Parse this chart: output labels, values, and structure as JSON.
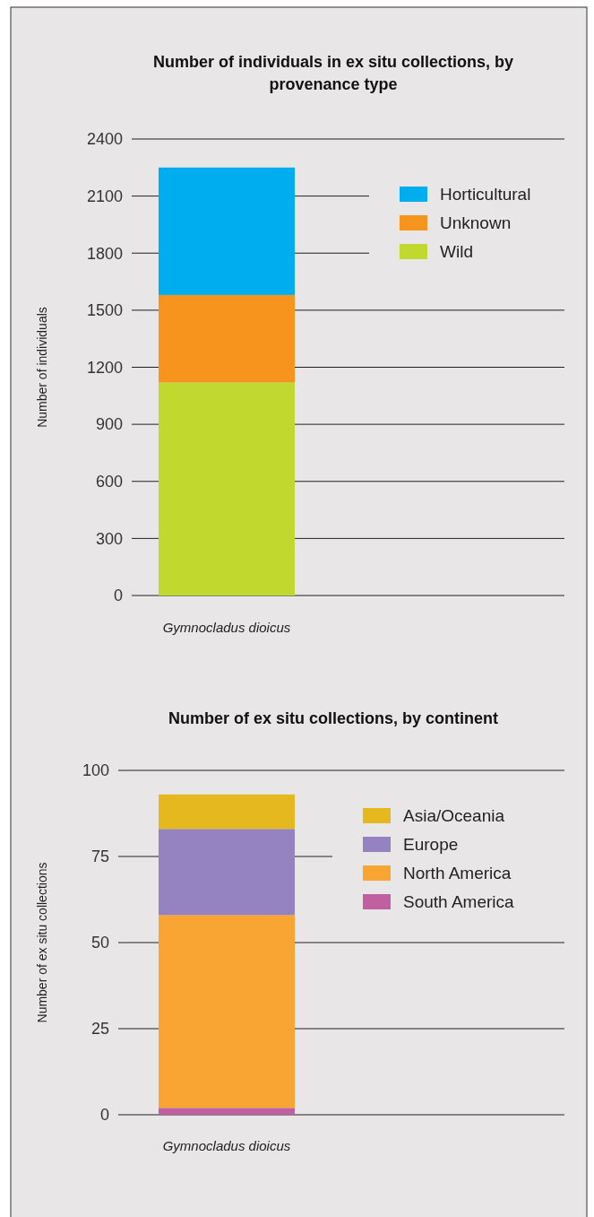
{
  "chart_data": [
    {
      "type": "bar",
      "title": "Number of individuals in ex situ collections, by provenance type",
      "ylabel": "Number of individuals",
      "categories": [
        "Gymnocladus dioicus"
      ],
      "stacked": true,
      "series": [
        {
          "name": "Wild",
          "color": "#c1d82f",
          "values": [
            1120
          ]
        },
        {
          "name": "Unknown",
          "color": "#f7941d",
          "values": [
            460
          ]
        },
        {
          "name": "Horticultural",
          "color": "#00aeef",
          "values": [
            670
          ]
        }
      ],
      "ylim": [
        0,
        2400
      ],
      "yticks": [
        0,
        300,
        600,
        900,
        1200,
        1500,
        1800,
        2100,
        2400
      ],
      "grid": "y",
      "legend": "top right"
    },
    {
      "type": "bar",
      "title": "Number of ex situ collections, by continent",
      "ylabel": "Number of ex situ collections",
      "categories": [
        "Gymnocladus dioicus"
      ],
      "stacked": true,
      "series": [
        {
          "name": "South America",
          "color": "#c060a1",
          "values": [
            2
          ]
        },
        {
          "name": "North America",
          "color": "#f9a533",
          "values": [
            56
          ]
        },
        {
          "name": "Europe",
          "color": "#9483c0",
          "values": [
            25
          ]
        },
        {
          "name": "Asia/Oceania",
          "color": "#e6b820",
          "values": [
            10
          ]
        }
      ],
      "ylim": [
        0,
        100
      ],
      "yticks": [
        0,
        25,
        50,
        75,
        100
      ],
      "grid": "y",
      "legend": "top right"
    }
  ]
}
